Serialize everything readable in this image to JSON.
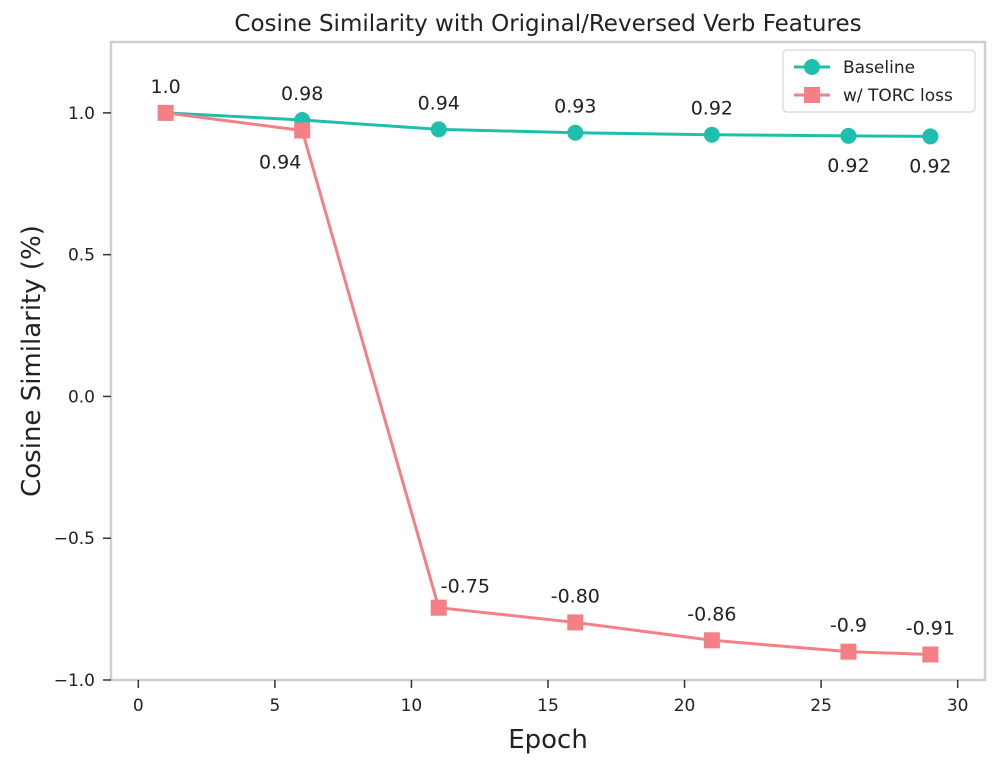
{
  "chart_data": {
    "type": "line",
    "title": "Cosine Similarity with Original/Reversed Verb Features",
    "xlabel": "Epoch",
    "ylabel": "Cosine Similarity (%)",
    "xlim": [
      -1,
      31
    ],
    "ylim": [
      -1.0,
      1.25
    ],
    "xticks": [
      0,
      5,
      10,
      15,
      20,
      25,
      30
    ],
    "xtick_labels": [
      "0",
      "5",
      "10",
      "15",
      "20",
      "25",
      "30"
    ],
    "yticks": [
      -1.0,
      -0.5,
      0.0,
      0.5,
      1.0
    ],
    "ytick_labels": [
      "−1.0",
      "−0.5",
      "0.0",
      "0.5",
      "1.0"
    ],
    "grid": false,
    "legend_position": "top-right",
    "x": [
      1,
      6,
      11,
      16,
      21,
      26,
      29
    ],
    "series": [
      {
        "name": "Baseline",
        "color": "#1fbfad",
        "marker": "circle",
        "values": [
          1.0,
          0.975,
          0.942,
          0.93,
          0.923,
          0.919,
          0.917
        ],
        "labels": [
          "",
          "0.98",
          "0.94",
          "0.93",
          "0.92",
          "0.92",
          "0.92"
        ],
        "label_positions": [
          "",
          "above",
          "above",
          "above",
          "above",
          "below",
          "below"
        ]
      },
      {
        "name": "w/ TORC loss",
        "color": "#f47f85",
        "marker": "square",
        "values": [
          1.0,
          0.938,
          -0.745,
          -0.797,
          -0.86,
          -0.9,
          -0.91
        ],
        "labels": [
          "1.0",
          "0.94",
          "-0.75",
          "-0.80",
          "-0.86",
          "-0.9",
          "-0.91"
        ],
        "label_positions": [
          "above",
          "below-left",
          "above-right",
          "above",
          "above",
          "above",
          "above"
        ]
      }
    ]
  }
}
